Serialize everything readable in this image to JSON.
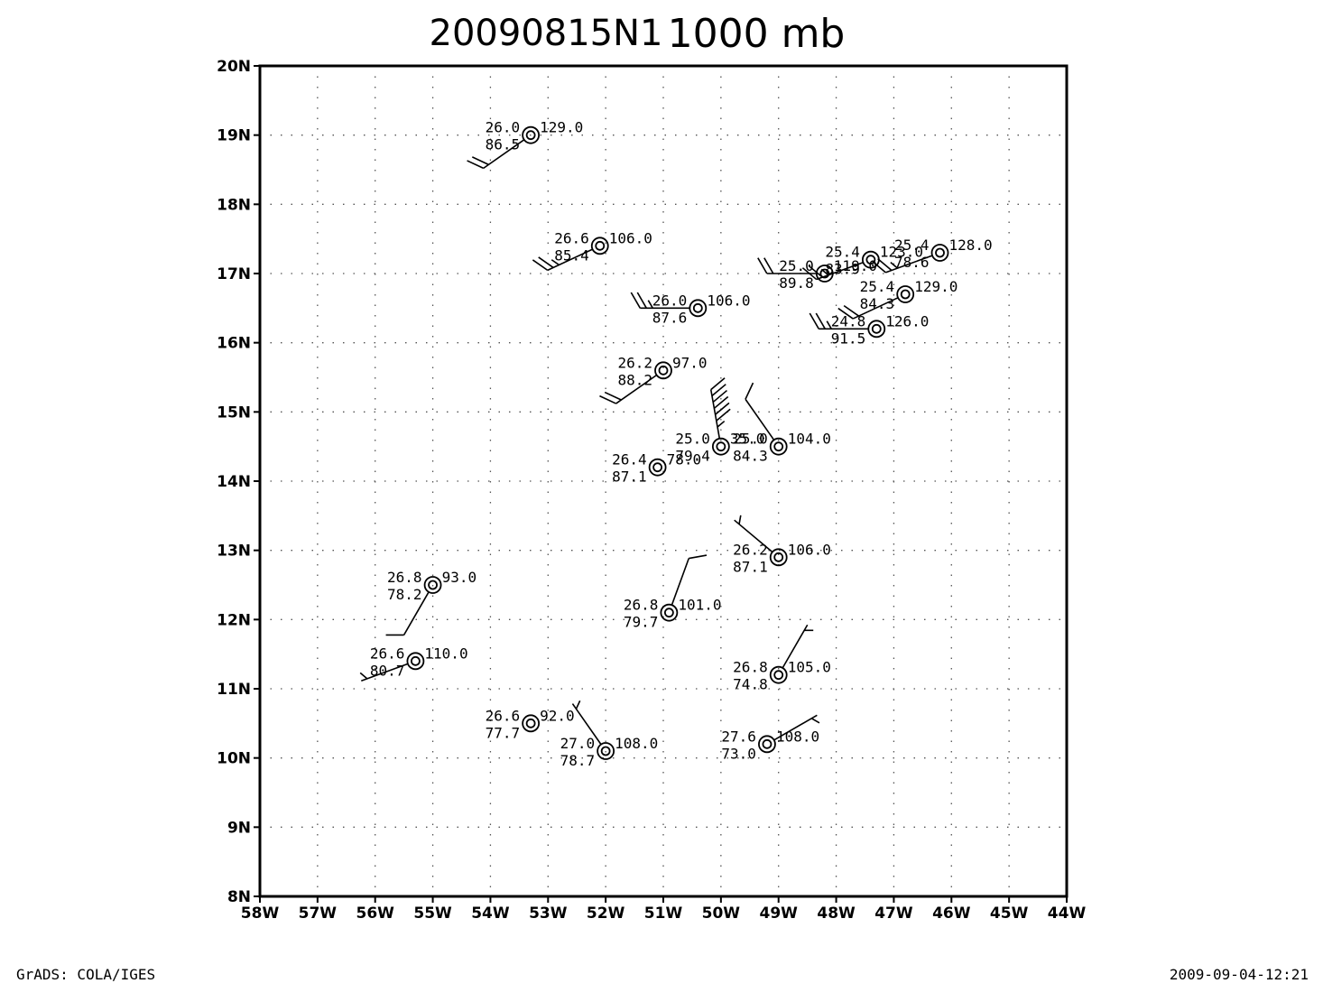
{
  "title": {
    "main": "20090815N1",
    "level": "1000 mb"
  },
  "footer": {
    "left": "GrADS: COLA/IGES",
    "right": "2009-09-04-12:21"
  },
  "chart_data": {
    "type": "station-model wind-barb map",
    "grid": "dotted",
    "xlim": [
      -58,
      -44
    ],
    "ylim": [
      8,
      20
    ],
    "x_ticks": [
      "58W",
      "57W",
      "56W",
      "55W",
      "54W",
      "53W",
      "52W",
      "51W",
      "50W",
      "49W",
      "48W",
      "47W",
      "46W",
      "45W",
      "44W"
    ],
    "y_ticks": [
      "8N",
      "9N",
      "10N",
      "11N",
      "12N",
      "13N",
      "14N",
      "15N",
      "16N",
      "17N",
      "18N",
      "19N",
      "20N"
    ],
    "stations": [
      {
        "lon": -53.3,
        "lat": 19.0,
        "t": "26.0",
        "rh": "86.5",
        "ht": "129.0",
        "dir": 235,
        "spd": 20
      },
      {
        "lon": -52.1,
        "lat": 17.4,
        "t": "26.6",
        "rh": "85.4",
        "ht": "106.0",
        "dir": 245,
        "spd": 25
      },
      {
        "lon": -50.4,
        "lat": 16.5,
        "t": "26.0",
        "rh": "87.6",
        "ht": "106.0",
        "dir": 270,
        "spd": 25
      },
      {
        "lon": -51.0,
        "lat": 15.6,
        "t": "26.2",
        "rh": "88.2",
        "ht": "97.0",
        "dir": 235,
        "spd": 20
      },
      {
        "lon": -48.2,
        "lat": 17.0,
        "t": "25.0",
        "rh": "89.8",
        "ht": "119.0",
        "dir": 270,
        "spd": 20
      },
      {
        "lon": -47.4,
        "lat": 17.2,
        "t": "25.4",
        "rh": "83.9",
        "ht": "123.0",
        "dir": 250,
        "spd": 25
      },
      {
        "lon": -46.2,
        "lat": 17.3,
        "t": "25.4",
        "rh": "78.6",
        "ht": "128.0",
        "dir": 250,
        "spd": 25
      },
      {
        "lon": -46.8,
        "lat": 16.7,
        "t": "25.4",
        "rh": "84.3",
        "ht": "129.0",
        "dir": 245,
        "spd": 20
      },
      {
        "lon": -47.3,
        "lat": 16.2,
        "t": "24.8",
        "rh": "91.5",
        "ht": "126.0",
        "dir": 270,
        "spd": 25
      },
      {
        "lon": -50.0,
        "lat": 14.5,
        "t": "25.0",
        "rh": "79.4",
        "ht": "35.0",
        "dir": 350,
        "spd": 65
      },
      {
        "lon": -49.0,
        "lat": 14.5,
        "t": "25.0",
        "rh": "84.3",
        "ht": "104.0",
        "dir": 325,
        "spd": 10
      },
      {
        "lon": -51.1,
        "lat": 14.2,
        "t": "26.4",
        "rh": "87.1",
        "ht": "78.0",
        "dir": null,
        "spd": 0
      },
      {
        "lon": -49.0,
        "lat": 12.9,
        "t": "26.2",
        "rh": "87.1",
        "ht": "106.0",
        "dir": 310,
        "spd": 5
      },
      {
        "lon": -55.0,
        "lat": 12.5,
        "t": "26.8",
        "rh": "78.2",
        "ht": "93.0",
        "dir": 210,
        "spd": 10
      },
      {
        "lon": -50.9,
        "lat": 12.1,
        "t": "26.8",
        "rh": "79.7",
        "ht": "101.0",
        "dir": 20,
        "spd": 10
      },
      {
        "lon": -55.3,
        "lat": 11.4,
        "t": "26.6",
        "rh": "80.7",
        "ht": "110.0",
        "dir": 250,
        "spd": 5
      },
      {
        "lon": -49.0,
        "lat": 11.2,
        "t": "26.8",
        "rh": "74.8",
        "ht": "105.0",
        "dir": 30,
        "spd": 5
      },
      {
        "lon": -53.3,
        "lat": 10.5,
        "t": "26.6",
        "rh": "77.7",
        "ht": "92.0",
        "dir": null,
        "spd": 0
      },
      {
        "lon": -52.0,
        "lat": 10.1,
        "t": "27.0",
        "rh": "78.7",
        "ht": "108.0",
        "dir": 325,
        "spd": 5
      },
      {
        "lon": -49.2,
        "lat": 10.2,
        "t": "27.6",
        "rh": "73.0",
        "ht": "108.0",
        "dir": 60,
        "spd": 5
      }
    ]
  }
}
